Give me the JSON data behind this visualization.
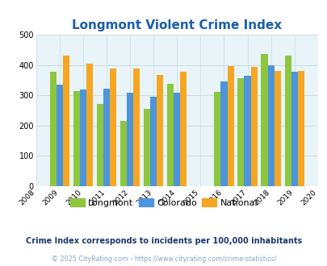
{
  "title": "Longmont Violent Crime Index",
  "subtitle": "Crime Index corresponds to incidents per 100,000 inhabitants",
  "footer": "© 2025 CityRating.com - https://www.cityrating.com/crime-statistics/",
  "years": [
    2009,
    2010,
    2011,
    2012,
    2013,
    2014,
    2016,
    2017,
    2018,
    2019
  ],
  "longmont": [
    377,
    313,
    270,
    215,
    256,
    337,
    311,
    357,
    435,
    430
  ],
  "colorado": [
    336,
    320,
    321,
    309,
    295,
    309,
    346,
    365,
    400,
    378
  ],
  "national": [
    431,
    404,
    388,
    387,
    368,
    378,
    397,
    394,
    379,
    379
  ],
  "color_longmont": "#8dc63f",
  "color_colorado": "#4d94db",
  "color_national": "#f5a623",
  "xlim": [
    2008,
    2020
  ],
  "ylim": [
    0,
    500
  ],
  "yticks": [
    0,
    100,
    200,
    300,
    400,
    500
  ],
  "xticks": [
    2008,
    2009,
    2010,
    2011,
    2012,
    2013,
    2014,
    2015,
    2016,
    2017,
    2018,
    2019,
    2020
  ],
  "bg_color": "#e8f4f8",
  "title_color": "#1a5fa8",
  "bar_width": 0.28,
  "legend_labels": [
    "Longmont",
    "Colorado",
    "National"
  ],
  "grid_color": "#c8dce8",
  "subtitle_color": "#1a3a6a",
  "footer_color": "#7fa8c8"
}
